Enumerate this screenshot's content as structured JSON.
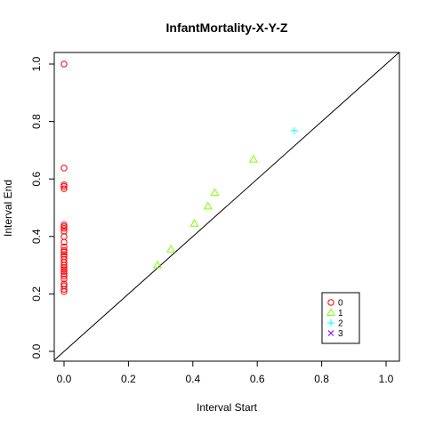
{
  "chart_data": {
    "type": "scatter",
    "title": "InfantMortality-X-Y-Z",
    "xlabel": "Interval Start",
    "ylabel": "Interval End",
    "xlim": [
      0,
      1
    ],
    "ylim": [
      0,
      1
    ],
    "xticks": [
      "0.0",
      "0.2",
      "0.4",
      "0.6",
      "0.8",
      "1.0"
    ],
    "yticks": [
      "0.0",
      "0.2",
      "0.4",
      "0.6",
      "0.8",
      "1.0"
    ],
    "grid": false,
    "diagonal": true,
    "legend_position": "bottom-right",
    "series": [
      {
        "name": "0",
        "marker": "circle",
        "color": "#FF0000",
        "points": [
          [
            0,
            1.0
          ],
          [
            0,
            0.638
          ],
          [
            0,
            0.58
          ],
          [
            0,
            0.574
          ],
          [
            0,
            0.566
          ],
          [
            0,
            0.44
          ],
          [
            0,
            0.434
          ],
          [
            0,
            0.428
          ],
          [
            0,
            0.418
          ],
          [
            0,
            0.4
          ],
          [
            0,
            0.38
          ],
          [
            0,
            0.364
          ],
          [
            0,
            0.352
          ],
          [
            0,
            0.346
          ],
          [
            0,
            0.338
          ],
          [
            0,
            0.33
          ],
          [
            0,
            0.32
          ],
          [
            0,
            0.31
          ],
          [
            0,
            0.3
          ],
          [
            0,
            0.292
          ],
          [
            0,
            0.285
          ],
          [
            0,
            0.278
          ],
          [
            0,
            0.27
          ],
          [
            0,
            0.262
          ],
          [
            0,
            0.252
          ],
          [
            0,
            0.235
          ],
          [
            0,
            0.228
          ],
          [
            0,
            0.216
          ],
          [
            0,
            0.208
          ]
        ]
      },
      {
        "name": "1",
        "marker": "triangle",
        "color": "#80FF00",
        "points": [
          [
            0.29,
            0.3
          ],
          [
            0.332,
            0.355
          ],
          [
            0.405,
            0.445
          ],
          [
            0.447,
            0.505
          ],
          [
            0.468,
            0.552
          ],
          [
            0.588,
            0.668
          ]
        ]
      },
      {
        "name": "2",
        "marker": "plus",
        "color": "#00FFFF",
        "points": [
          [
            0.715,
            0.768
          ]
        ]
      },
      {
        "name": "3",
        "marker": "cross",
        "color": "#8000FF",
        "points": []
      }
    ]
  }
}
